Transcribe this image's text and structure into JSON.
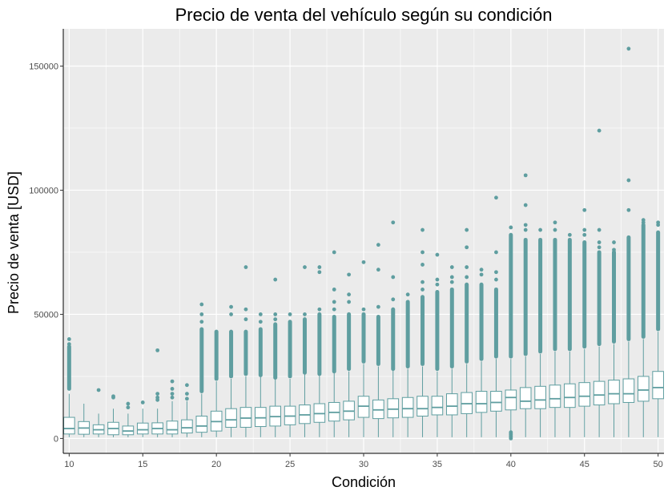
{
  "chart_data": {
    "type": "boxplot",
    "title": "Precio de venta del vehículo según su condición",
    "xlabel": "Condición",
    "ylabel": "Precio de venta [USD]",
    "xlim": [
      9.6,
      50.4
    ],
    "ylim": [
      -6000,
      165000
    ],
    "x_ticks": [
      10,
      15,
      20,
      25,
      30,
      35,
      40,
      45,
      50
    ],
    "y_ticks": [
      0,
      50000,
      100000,
      150000
    ],
    "grid": true,
    "colors": {
      "panel": "#ebebeb",
      "grid": "#ffffff",
      "box_stroke": "#5f9ea0",
      "box_fill": "#ffffff",
      "point": "#5f9ea0"
    },
    "boxes": [
      {
        "x": 10,
        "q1": 1800,
        "median": 4000,
        "q3": 8500,
        "whisker_low": 500,
        "whisker_high": 18000,
        "outlier_min": 20000,
        "outlier_max": 37000,
        "outliers": [
          40000,
          38000
        ]
      },
      {
        "x": 11,
        "q1": 1700,
        "median": 4200,
        "q3": 6800,
        "whisker_low": 500,
        "whisker_high": 14000,
        "outlier_min": null,
        "outlier_max": null,
        "outliers": []
      },
      {
        "x": 12,
        "q1": 1800,
        "median": 3500,
        "q3": 5500,
        "whisker_low": 500,
        "whisker_high": 10000,
        "outlier_min": null,
        "outlier_max": null,
        "outliers": [
          19500
        ]
      },
      {
        "x": 13,
        "q1": 1500,
        "median": 4000,
        "q3": 6500,
        "whisker_low": 500,
        "whisker_high": 12000,
        "outlier_min": null,
        "outlier_max": null,
        "outliers": [
          17000,
          16500
        ]
      },
      {
        "x": 14,
        "q1": 1500,
        "median": 3000,
        "q3": 5000,
        "whisker_low": 500,
        "whisker_high": 10000,
        "outlier_min": null,
        "outlier_max": null,
        "outliers": [
          14000,
          12500
        ]
      },
      {
        "x": 15,
        "q1": 1800,
        "median": 3500,
        "q3": 6200,
        "whisker_low": 500,
        "whisker_high": 12000,
        "outlier_min": null,
        "outlier_max": null,
        "outliers": [
          14500
        ]
      },
      {
        "x": 16,
        "q1": 1800,
        "median": 4000,
        "q3": 6300,
        "whisker_low": 500,
        "whisker_high": 12000,
        "outlier_min": null,
        "outlier_max": null,
        "outliers": [
          35500,
          18000,
          16500,
          15500
        ]
      },
      {
        "x": 17,
        "q1": 1800,
        "median": 3500,
        "q3": 7000,
        "whisker_low": 500,
        "whisker_high": 15000,
        "outlier_min": null,
        "outlier_max": null,
        "outliers": [
          23000,
          20000,
          18000,
          16500
        ]
      },
      {
        "x": 18,
        "q1": 2200,
        "median": 4300,
        "q3": 7500,
        "whisker_low": 500,
        "whisker_high": 15000,
        "outlier_min": null,
        "outlier_max": null,
        "outliers": [
          21500,
          18000,
          16000
        ]
      },
      {
        "x": 19,
        "q1": 2500,
        "median": 5000,
        "q3": 9000,
        "whisker_low": 500,
        "whisker_high": 18000,
        "outlier_min": 19000,
        "outlier_max": 44000,
        "outliers": [
          54000,
          50000,
          47000
        ]
      },
      {
        "x": 20,
        "q1": 3000,
        "median": 6800,
        "q3": 11000,
        "whisker_low": 500,
        "whisker_high": 23000,
        "outlier_min": 24000,
        "outlier_max": 43000,
        "outliers": []
      },
      {
        "x": 21,
        "q1": 4500,
        "median": 7500,
        "q3": 12000,
        "whisker_low": 500,
        "whisker_high": 24000,
        "outlier_min": 25000,
        "outlier_max": 43000,
        "outliers": [
          53000,
          50000
        ]
      },
      {
        "x": 22,
        "q1": 4500,
        "median": 8200,
        "q3": 12500,
        "whisker_low": 500,
        "whisker_high": 25000,
        "outlier_min": 26000,
        "outlier_max": 43000,
        "outliers": [
          69000,
          52000,
          48000
        ]
      },
      {
        "x": 23,
        "q1": 4800,
        "median": 8300,
        "q3": 12500,
        "whisker_low": 500,
        "whisker_high": 25000,
        "outlier_min": 25500,
        "outlier_max": 44000,
        "outliers": [
          50000,
          47000
        ]
      },
      {
        "x": 24,
        "q1": 5000,
        "median": 8800,
        "q3": 13000,
        "whisker_low": 500,
        "whisker_high": 24000,
        "outlier_min": 24500,
        "outlier_max": 46000,
        "outliers": [
          64000,
          50000,
          48000
        ]
      },
      {
        "x": 25,
        "q1": 5500,
        "median": 9000,
        "q3": 13000,
        "whisker_low": 500,
        "whisker_high": 24000,
        "outlier_min": 25000,
        "outlier_max": 47000,
        "outliers": [
          50000
        ]
      },
      {
        "x": 26,
        "q1": 6000,
        "median": 9500,
        "q3": 13500,
        "whisker_low": 500,
        "whisker_high": 26000,
        "outlier_min": 26500,
        "outlier_max": 48000,
        "outliers": [
          69000,
          50000
        ]
      },
      {
        "x": 27,
        "q1": 6500,
        "median": 10000,
        "q3": 14000,
        "whisker_low": 500,
        "whisker_high": 25500,
        "outlier_min": 26000,
        "outlier_max": 50000,
        "outliers": [
          69000,
          67000,
          52000
        ]
      },
      {
        "x": 28,
        "q1": 7000,
        "median": 10500,
        "q3": 14500,
        "whisker_low": 500,
        "whisker_high": 26500,
        "outlier_min": 27000,
        "outlier_max": 49000,
        "outliers": [
          75000,
          60000,
          55000,
          52000
        ]
      },
      {
        "x": 29,
        "q1": 7500,
        "median": 11000,
        "q3": 15000,
        "whisker_low": 500,
        "whisker_high": 27000,
        "outlier_min": 28000,
        "outlier_max": 50000,
        "outliers": [
          66000,
          58000,
          55000
        ]
      },
      {
        "x": 30,
        "q1": 8500,
        "median": 13000,
        "q3": 17000,
        "whisker_low": 500,
        "whisker_high": 30000,
        "outlier_min": 31000,
        "outlier_max": 50000,
        "outliers": [
          71000,
          52000
        ]
      },
      {
        "x": 31,
        "q1": 8000,
        "median": 11500,
        "q3": 15500,
        "whisker_low": 500,
        "whisker_high": 29000,
        "outlier_min": 30000,
        "outlier_max": 49000,
        "outliers": [
          78000,
          68000,
          53000
        ]
      },
      {
        "x": 32,
        "q1": 8300,
        "median": 11800,
        "q3": 16000,
        "whisker_low": 500,
        "whisker_high": 27500,
        "outlier_min": 28000,
        "outlier_max": 52000,
        "outliers": [
          87000,
          65000,
          56000
        ]
      },
      {
        "x": 33,
        "q1": 8500,
        "median": 12000,
        "q3": 16500,
        "whisker_low": 500,
        "whisker_high": 28000,
        "outlier_min": 29000,
        "outlier_max": 55000,
        "outliers": [
          58000
        ]
      },
      {
        "x": 34,
        "q1": 9000,
        "median": 12000,
        "q3": 17000,
        "whisker_low": 500,
        "whisker_high": 29000,
        "outlier_min": 30000,
        "outlier_max": 57000,
        "outliers": [
          84000,
          75000,
          70000,
          63000,
          60000
        ]
      },
      {
        "x": 35,
        "q1": 9500,
        "median": 12500,
        "q3": 17000,
        "whisker_low": 500,
        "whisker_high": 27000,
        "outlier_min": 28000,
        "outlier_max": 59000,
        "outliers": [
          74000,
          64000,
          62000
        ]
      },
      {
        "x": 36,
        "q1": 9500,
        "median": 13000,
        "q3": 18000,
        "whisker_low": 500,
        "whisker_high": 28000,
        "outlier_min": 29000,
        "outlier_max": 60000,
        "outliers": [
          69000,
          65000,
          63000
        ]
      },
      {
        "x": 37,
        "q1": 10000,
        "median": 14000,
        "q3": 18500,
        "whisker_low": 500,
        "whisker_high": 30000,
        "outlier_min": 31000,
        "outlier_max": 62000,
        "outliers": [
          84000,
          77000,
          69000,
          65000
        ]
      },
      {
        "x": 38,
        "q1": 10500,
        "median": 14000,
        "q3": 19000,
        "whisker_low": 500,
        "whisker_high": 31000,
        "outlier_min": 32000,
        "outlier_max": 62000,
        "outliers": [
          68000,
          66000
        ]
      },
      {
        "x": 39,
        "q1": 11000,
        "median": 14500,
        "q3": 19000,
        "whisker_low": 500,
        "whisker_high": 32000,
        "outlier_min": 33000,
        "outlier_max": 60000,
        "outliers": [
          97000,
          75000,
          67000,
          64000
        ]
      },
      {
        "x": 40,
        "q1": 11500,
        "median": 16500,
        "q3": 19500,
        "whisker_low": 500,
        "whisker_high": 32000,
        "outlier_min": 33000,
        "outlier_max": 82000,
        "outliers": [
          85000,
          0,
          500,
          1000,
          1500,
          2000,
          2500
        ]
      },
      {
        "x": 41,
        "q1": 12000,
        "median": 15000,
        "q3": 20500,
        "whisker_low": 500,
        "whisker_high": 33000,
        "outlier_min": 34000,
        "outlier_max": 80000,
        "outliers": [
          106000,
          94000,
          86000,
          84000
        ]
      },
      {
        "x": 42,
        "q1": 12000,
        "median": 15500,
        "q3": 21000,
        "whisker_low": 500,
        "whisker_high": 34000,
        "outlier_min": 35000,
        "outlier_max": 80000,
        "outliers": [
          84000
        ]
      },
      {
        "x": 43,
        "q1": 12500,
        "median": 16000,
        "q3": 21500,
        "whisker_low": 500,
        "whisker_high": 35000,
        "outlier_min": 36000,
        "outlier_max": 80000,
        "outliers": [
          87000,
          84000
        ]
      },
      {
        "x": 44,
        "q1": 12500,
        "median": 16500,
        "q3": 22000,
        "whisker_low": 500,
        "whisker_high": 35000,
        "outlier_min": 36000,
        "outlier_max": 80000,
        "outliers": [
          82000
        ]
      },
      {
        "x": 45,
        "q1": 13000,
        "median": 17000,
        "q3": 22500,
        "whisker_low": 500,
        "whisker_high": 36000,
        "outlier_min": 37000,
        "outlier_max": 79000,
        "outliers": [
          92000,
          84000,
          82000
        ]
      },
      {
        "x": 46,
        "q1": 13500,
        "median": 17500,
        "q3": 23000,
        "whisker_low": 500,
        "whisker_high": 37000,
        "outlier_min": 38000,
        "outlier_max": 75000,
        "outliers": [
          124000,
          84000,
          79000,
          77000
        ]
      },
      {
        "x": 47,
        "q1": 14000,
        "median": 18000,
        "q3": 23500,
        "whisker_low": 500,
        "whisker_high": 38000,
        "outlier_min": 39000,
        "outlier_max": 75000,
        "outliers": [
          79000,
          76000
        ]
      },
      {
        "x": 48,
        "q1": 14500,
        "median": 18000,
        "q3": 24000,
        "whisker_low": 500,
        "whisker_high": 39000,
        "outlier_min": 40000,
        "outlier_max": 81000,
        "outliers": [
          157000,
          104000,
          92000
        ]
      },
      {
        "x": 49,
        "q1": 15000,
        "median": 19500,
        "q3": 25000,
        "whisker_low": 500,
        "whisker_high": 40000,
        "outlier_min": 41000,
        "outlier_max": 86000,
        "outliers": [
          88000,
          87000
        ]
      },
      {
        "x": 50,
        "q1": 16000,
        "median": 20500,
        "q3": 27000,
        "whisker_low": 500,
        "whisker_high": 43000,
        "outlier_min": 44000,
        "outlier_max": 83000,
        "outliers": [
          87000,
          86000
        ]
      }
    ]
  }
}
